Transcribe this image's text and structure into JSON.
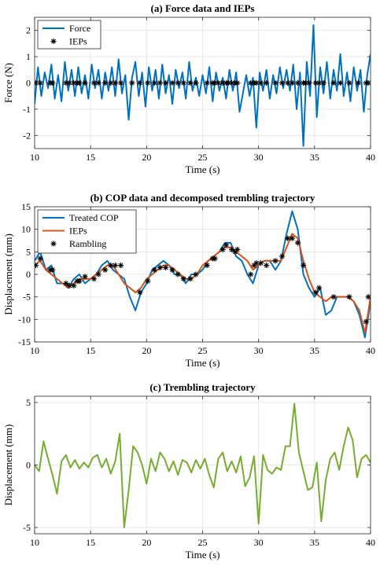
{
  "chart_data": [
    {
      "type": "line",
      "title": "(a) Force data and IEPs",
      "xlabel": "Time (s)",
      "ylabel": "Force (N)",
      "xlim": [
        10,
        40
      ],
      "ylim": [
        -2.5,
        2.5
      ],
      "xticks": [
        10,
        15,
        20,
        25,
        30,
        35,
        40
      ],
      "yticks": [
        -2,
        -1,
        0,
        1,
        2
      ],
      "grid": true,
      "legend": "top-left",
      "series": [
        {
          "name": "Force",
          "color": "#0072BD",
          "style": "line",
          "x": [
            10.0,
            10.3,
            10.6,
            10.9,
            11.2,
            11.5,
            11.8,
            12.1,
            12.4,
            12.7,
            13.0,
            13.3,
            13.6,
            13.9,
            14.2,
            14.5,
            14.8,
            15.1,
            15.4,
            15.7,
            16.0,
            16.3,
            16.6,
            16.9,
            17.2,
            17.5,
            17.8,
            18.1,
            18.4,
            18.7,
            19.0,
            19.3,
            19.6,
            19.9,
            20.2,
            20.5,
            20.8,
            21.1,
            21.4,
            21.7,
            22.0,
            22.3,
            22.6,
            22.9,
            23.2,
            23.5,
            23.8,
            24.1,
            24.4,
            24.7,
            25.0,
            25.3,
            25.6,
            25.9,
            26.2,
            26.5,
            26.8,
            27.1,
            27.4,
            27.7,
            28.0,
            28.3,
            28.6,
            28.9,
            29.2,
            29.5,
            29.8,
            30.1,
            30.4,
            30.7,
            31.0,
            31.3,
            31.6,
            31.9,
            32.2,
            32.5,
            32.8,
            33.1,
            33.4,
            33.7,
            34.0,
            34.3,
            34.6,
            34.9,
            35.2,
            35.5,
            35.8,
            36.1,
            36.4,
            36.7,
            37.0,
            37.3,
            37.6,
            37.9,
            38.2,
            38.5,
            38.8,
            39.1,
            39.4,
            39.7,
            40.0
          ],
          "y": [
            -0.8,
            0.6,
            -0.5,
            0.4,
            -0.2,
            0.7,
            -0.6,
            0.3,
            -0.7,
            0.8,
            -0.3,
            0.5,
            -0.5,
            0.6,
            -0.4,
            0.3,
            -0.6,
            0.7,
            -0.2,
            0.5,
            -0.6,
            0.4,
            -0.3,
            0.6,
            -0.5,
            0.9,
            -0.4,
            0.3,
            -1.4,
            0.2,
            0.8,
            -0.5,
            0.4,
            -0.9,
            0.6,
            -0.3,
            0.5,
            -0.6,
            0.7,
            -0.4,
            0.3,
            -0.8,
            0.5,
            -0.2,
            0.4,
            -0.6,
            0.8,
            -0.3,
            0.2,
            -0.5,
            0.3,
            -0.4,
            0.6,
            -0.7,
            0.4,
            -0.3,
            0.2,
            -0.6,
            0.5,
            -0.3,
            0.4,
            -1.1,
            -0.4,
            0.3,
            -0.5,
            0.2,
            -1.7,
            0.4,
            -0.3,
            0.5,
            -0.6,
            0.3,
            -0.4,
            0.6,
            -0.2,
            0.5,
            -0.3,
            0.7,
            -1.0,
            0.4,
            -2.4,
            0.8,
            -0.5,
            2.2,
            -1.3,
            0.6,
            -0.4,
            0.8,
            -0.6,
            0.5,
            -0.3,
            1.1,
            -0.5,
            0.4,
            -0.7,
            0.6,
            -0.3,
            0.5,
            -1.1,
            0.3,
            1.1
          ]
        },
        {
          "name": "IEPs",
          "color": "#000000",
          "style": "marker",
          "x": [
            10.1,
            10.5,
            11.4,
            11.6,
            12.8,
            13.1,
            13.5,
            13.8,
            14.0,
            14.5,
            15.3,
            15.7,
            16.3,
            16.8,
            17.2,
            17.7,
            18.7,
            19.4,
            20.1,
            20.7,
            21.2,
            21.7,
            22.3,
            22.8,
            23.3,
            23.9,
            24.4,
            25.4,
            25.9,
            26.1,
            26.4,
            26.8,
            27.1,
            27.3,
            27.6,
            27.9,
            28.1,
            29.3,
            29.6,
            29.8,
            30.2,
            30.7,
            31.5,
            32.1,
            32.6,
            33.0,
            33.5,
            34.0,
            34.2,
            34.5,
            35.1,
            35.4,
            35.8,
            36.7,
            37.3,
            38.1,
            38.9,
            39.6,
            39.8
          ],
          "y": [
            0,
            0,
            0,
            0,
            0,
            0,
            0,
            0,
            0,
            0,
            0,
            0,
            0,
            0,
            0,
            0,
            0,
            0,
            0,
            0,
            0,
            0,
            0,
            0,
            0,
            0,
            0,
            0,
            0,
            0,
            0,
            0,
            0,
            0,
            0,
            0,
            0,
            0,
            0,
            0,
            0,
            0,
            0,
            0,
            0,
            0,
            0,
            0,
            0,
            0,
            0,
            0,
            0,
            0,
            0,
            0,
            0,
            0,
            0
          ]
        }
      ]
    },
    {
      "type": "line",
      "title": "(b) COP data and decomposed trembling trajectory",
      "xlabel": "Time (s)",
      "ylabel": "Displacement (mm)",
      "xlim": [
        10,
        40
      ],
      "ylim": [
        -15,
        15
      ],
      "xticks": [
        10,
        15,
        20,
        25,
        30,
        35,
        40
      ],
      "yticks": [
        -15,
        -10,
        -5,
        0,
        5,
        10,
        15
      ],
      "grid": true,
      "legend": "top-left",
      "series": [
        {
          "name": "Treated COP",
          "color": "#0072BD",
          "style": "line",
          "x": [
            10.0,
            10.5,
            11.0,
            11.5,
            12.0,
            12.5,
            13.0,
            13.5,
            14.0,
            14.5,
            15.0,
            15.5,
            16.0,
            16.5,
            17.0,
            17.5,
            18.0,
            18.5,
            19.0,
            19.5,
            20.0,
            20.5,
            21.0,
            21.5,
            22.0,
            22.5,
            23.0,
            23.5,
            24.0,
            24.5,
            25.0,
            25.5,
            26.0,
            26.5,
            27.0,
            27.5,
            28.0,
            28.5,
            29.0,
            29.5,
            30.0,
            30.5,
            31.0,
            31.5,
            32.0,
            32.5,
            33.0,
            33.5,
            34.0,
            34.5,
            35.0,
            35.5,
            36.0,
            36.5,
            37.0,
            37.5,
            38.0,
            38.5,
            39.0,
            39.5,
            40.0
          ],
          "y": [
            3,
            5,
            1,
            2,
            -2,
            -2,
            -3,
            -1,
            0,
            -2,
            -1,
            0,
            2,
            3,
            1,
            0,
            -1,
            -5,
            -8,
            -4,
            -2,
            1,
            2,
            3,
            2,
            0,
            0,
            -2,
            0,
            0,
            1,
            3,
            4,
            5,
            7,
            7,
            4,
            3,
            0,
            -2,
            2,
            3,
            3,
            1,
            3,
            9,
            14,
            10,
            0,
            -3,
            -5,
            -3,
            -9,
            -8,
            -5,
            -5,
            -5,
            -6,
            -9,
            -14,
            -6
          ]
        },
        {
          "name": "IEPs",
          "color": "#D95319",
          "style": "line",
          "x": [
            10.0,
            10.5,
            11.0,
            11.5,
            12.0,
            12.5,
            13.0,
            13.5,
            14.0,
            14.5,
            15.0,
            15.5,
            16.0,
            16.5,
            17.0,
            17.5,
            18.0,
            18.5,
            19.0,
            19.5,
            20.0,
            20.5,
            21.0,
            21.5,
            22.0,
            22.5,
            23.0,
            23.5,
            24.0,
            24.5,
            25.0,
            25.5,
            26.0,
            26.5,
            27.0,
            27.5,
            28.0,
            28.5,
            29.0,
            29.5,
            30.0,
            30.5,
            31.0,
            31.5,
            32.0,
            32.5,
            33.0,
            33.5,
            34.0,
            34.5,
            35.0,
            35.5,
            36.0,
            36.5,
            37.0,
            37.5,
            38.0,
            38.5,
            39.0,
            39.5,
            40.0
          ],
          "y": [
            2,
            3,
            1,
            0,
            -1,
            -2,
            -3,
            -2,
            -1,
            -1,
            -1,
            0,
            1,
            2,
            2,
            0,
            -2,
            -3,
            -4,
            -3,
            -1,
            0,
            1,
            2,
            2,
            1,
            0,
            -1,
            -1,
            0,
            2,
            3,
            4,
            5,
            6,
            6,
            5,
            4,
            3,
            1,
            2,
            3,
            3,
            3,
            3,
            6,
            9,
            8,
            3,
            -1,
            -4,
            -5,
            -6,
            -5,
            -5,
            -5,
            -5,
            -6,
            -8,
            -13,
            -5
          ]
        },
        {
          "name": "Rambling",
          "color": "#000000",
          "style": "marker",
          "x": [
            10.1,
            10.5,
            11.4,
            11.6,
            12.8,
            13.1,
            13.5,
            13.8,
            14.0,
            14.5,
            15.3,
            15.7,
            16.3,
            16.8,
            17.2,
            17.7,
            19.4,
            20.1,
            20.7,
            21.2,
            21.7,
            22.3,
            22.8,
            23.3,
            23.9,
            24.4,
            25.4,
            25.9,
            26.1,
            26.8,
            27.1,
            27.6,
            27.9,
            28.1,
            29.3,
            29.6,
            29.8,
            30.2,
            30.7,
            31.5,
            32.1,
            32.6,
            33.0,
            33.5,
            34.0,
            35.1,
            35.4,
            36.7,
            38.1,
            39.6,
            39.8
          ],
          "y": [
            2,
            3.5,
            1,
            1,
            -2,
            -2.5,
            -2.5,
            -1.5,
            -1.5,
            -0.5,
            -1,
            0,
            1,
            2,
            2,
            2,
            -4,
            -1.5,
            1,
            1.5,
            1.5,
            1,
            0,
            -1,
            -1,
            0,
            2,
            3.5,
            3.5,
            5.5,
            6.5,
            5.5,
            5,
            5.5,
            0,
            2,
            2.5,
            2.5,
            2,
            3,
            4,
            8,
            8,
            7,
            2,
            -4,
            -3,
            -5,
            -5,
            -10.5,
            -5
          ]
        }
      ]
    },
    {
      "type": "line",
      "title": "(c) Trembling trajectory",
      "xlabel": "Time (s)",
      "ylabel": "Displacement (mm)",
      "xlim": [
        10,
        40
      ],
      "ylim": [
        -5.5,
        5.5
      ],
      "xticks": [
        10,
        15,
        20,
        25,
        30,
        35,
        40
      ],
      "yticks": [
        -5,
        0,
        5
      ],
      "grid": true,
      "series": [
        {
          "name": "",
          "color": "#77AC30",
          "style": "line",
          "x": [
            10.0,
            10.4,
            10.8,
            11.2,
            11.6,
            12.0,
            12.4,
            12.8,
            13.2,
            13.6,
            14.0,
            14.4,
            14.8,
            15.2,
            15.6,
            16.0,
            16.4,
            16.8,
            17.2,
            17.6,
            18.0,
            18.4,
            18.8,
            19.2,
            19.6,
            20.0,
            20.4,
            20.8,
            21.2,
            21.6,
            22.0,
            22.4,
            22.8,
            23.2,
            23.6,
            24.0,
            24.4,
            24.8,
            25.2,
            25.6,
            26.0,
            26.4,
            26.8,
            27.2,
            27.6,
            28.0,
            28.4,
            28.8,
            29.2,
            29.6,
            30.0,
            30.4,
            30.8,
            31.2,
            31.6,
            32.0,
            32.4,
            32.8,
            33.2,
            33.6,
            34.0,
            34.4,
            34.8,
            35.2,
            35.6,
            36.0,
            36.4,
            36.8,
            37.2,
            37.6,
            38.0,
            38.4,
            38.8,
            39.2,
            39.6,
            40.0
          ],
          "y": [
            0,
            -0.5,
            1.9,
            0.5,
            -0.8,
            -2.3,
            0.3,
            0.8,
            -0.2,
            0.4,
            -0.3,
            0.2,
            -0.2,
            0.6,
            0.8,
            -0.2,
            0.5,
            -0.7,
            0.3,
            2.5,
            -5.0,
            -2.0,
            1.5,
            1.0,
            0.0,
            -1.5,
            0.5,
            -0.5,
            1.0,
            0.5,
            -0.5,
            0.3,
            -0.8,
            0.4,
            0.2,
            -0.6,
            0.4,
            -0.3,
            0.5,
            -0.8,
            -1.8,
            0.5,
            1.0,
            -0.5,
            0.3,
            -0.6,
            0.7,
            -1.7,
            -1.0,
            0.7,
            -4.7,
            0.8,
            -0.4,
            -0.7,
            -0.2,
            -0.4,
            1.5,
            1.5,
            4.9,
            1.0,
            -0.5,
            -2.0,
            -1.8,
            0.2,
            -4.5,
            -1.2,
            0.5,
            1.0,
            -0.4,
            1.5,
            3.0,
            2.0,
            -1.0,
            0.5,
            0.8,
            0.2
          ]
        }
      ]
    }
  ]
}
